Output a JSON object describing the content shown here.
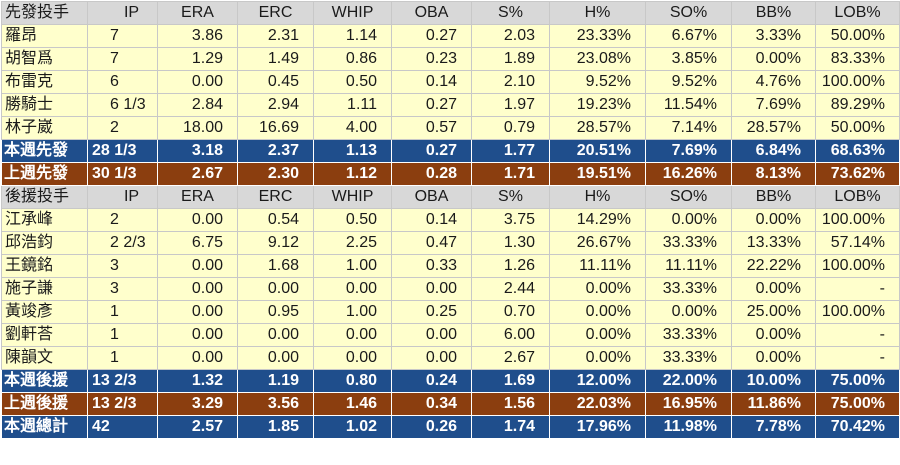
{
  "starters": {
    "header": [
      "先發投手",
      "IP",
      "ERA",
      "ERC",
      "WHIP",
      "OBA",
      "S%",
      "H%",
      "SO%",
      "BB%",
      "LOB%"
    ],
    "rows": [
      [
        "羅昂",
        "7",
        "3.86",
        "2.31",
        "1.14",
        "0.27",
        "2.03",
        "23.33%",
        "6.67%",
        "3.33%",
        "50.00%"
      ],
      [
        "胡智爲",
        "7",
        "1.29",
        "1.49",
        "0.86",
        "0.23",
        "1.89",
        "23.08%",
        "3.85%",
        "0.00%",
        "83.33%"
      ],
      [
        "布雷克",
        "6",
        "0.00",
        "0.45",
        "0.50",
        "0.14",
        "2.10",
        "9.52%",
        "9.52%",
        "4.76%",
        "100.00%"
      ],
      [
        "勝騎士",
        "6 1/3",
        "2.84",
        "2.94",
        "1.11",
        "0.27",
        "1.97",
        "19.23%",
        "11.54%",
        "7.69%",
        "89.29%"
      ],
      [
        "林子崴",
        "2",
        "18.00",
        "16.69",
        "4.00",
        "0.57",
        "0.79",
        "28.57%",
        "7.14%",
        "28.57%",
        "50.00%"
      ]
    ],
    "this_week": [
      "本週先發",
      "28 1/3",
      "3.18",
      "2.37",
      "1.13",
      "0.27",
      "1.77",
      "20.51%",
      "7.69%",
      "6.84%",
      "68.63%"
    ],
    "last_week": [
      "上週先發",
      "30 1/3",
      "2.67",
      "2.30",
      "1.12",
      "0.28",
      "1.71",
      "19.51%",
      "16.26%",
      "8.13%",
      "73.62%"
    ]
  },
  "relievers": {
    "header": [
      "後援投手",
      "IP",
      "ERA",
      "ERC",
      "WHIP",
      "OBA",
      "S%",
      "H%",
      "SO%",
      "BB%",
      "LOB%"
    ],
    "rows": [
      [
        "江承峰",
        "2",
        "0.00",
        "0.54",
        "0.50",
        "0.14",
        "3.75",
        "14.29%",
        "0.00%",
        "0.00%",
        "100.00%"
      ],
      [
        "邱浩鈞",
        "2 2/3",
        "6.75",
        "9.12",
        "2.25",
        "0.47",
        "1.30",
        "26.67%",
        "33.33%",
        "13.33%",
        "57.14%"
      ],
      [
        "王鏡銘",
        "3",
        "0.00",
        "1.68",
        "1.00",
        "0.33",
        "1.26",
        "11.11%",
        "11.11%",
        "22.22%",
        "100.00%"
      ],
      [
        "施子謙",
        "3",
        "0.00",
        "0.00",
        "0.00",
        "0.00",
        "2.44",
        "0.00%",
        "33.33%",
        "0.00%",
        "-"
      ],
      [
        "黃竣彥",
        "1",
        "0.00",
        "0.95",
        "1.00",
        "0.25",
        "0.70",
        "0.00%",
        "0.00%",
        "25.00%",
        "100.00%"
      ],
      [
        "劉軒荅",
        "1",
        "0.00",
        "0.00",
        "0.00",
        "0.00",
        "6.00",
        "0.00%",
        "33.33%",
        "0.00%",
        "-"
      ],
      [
        "陳韻文",
        "1",
        "0.00",
        "0.00",
        "0.00",
        "0.00",
        "2.67",
        "0.00%",
        "33.33%",
        "0.00%",
        "-"
      ]
    ],
    "this_week": [
      "本週後援",
      "13 2/3",
      "1.32",
      "1.19",
      "0.80",
      "0.24",
      "1.69",
      "12.00%",
      "22.00%",
      "10.00%",
      "75.00%"
    ],
    "last_week": [
      "上週後援",
      "13 2/3",
      "3.29",
      "3.56",
      "1.46",
      "0.34",
      "1.56",
      "22.03%",
      "16.95%",
      "11.86%",
      "75.00%"
    ]
  },
  "week_total": [
    "本週總計",
    "42",
    "2.57",
    "1.85",
    "1.02",
    "0.26",
    "1.74",
    "17.96%",
    "11.98%",
    "7.78%",
    "70.42%"
  ],
  "colors": {
    "header_bg": "#d8d8d8",
    "row_bg": "#ffffcc",
    "summary_blue": "#1f4e8c",
    "summary_brown": "#8b3e0f"
  }
}
